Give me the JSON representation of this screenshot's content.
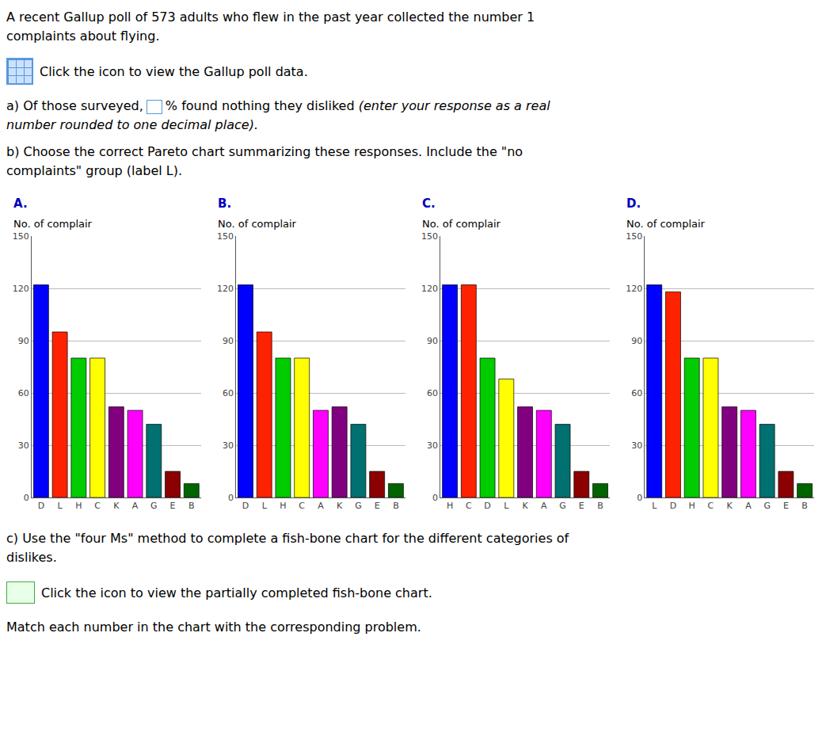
{
  "annotations": [
    "A recent Gallup poll of 573 adults who flew in the past year collected the number 1",
    "complaints about flying.",
    "Click the icon to view the Gallup poll data.",
    "a) Of those surveyed,",
    "% found nothing they disliked",
    "(enter your response as a real",
    "number rounded to one decimal place).",
    "b) Choose the correct Pareto chart summarizing these responses. Include the \"no",
    "complaints\" group (label L).",
    "c) Use the \"four Ms\" method to complete a fish-bone chart for the different categories of",
    "dislikes.",
    "Click the icon to view the partially completed fish-bone chart.",
    "Match each number in the chart with the corresponding problem."
  ],
  "chart_data": [
    {
      "type": "bar",
      "title": "A.",
      "y_label": "No. of complair",
      "categories": [
        "D",
        "L",
        "H",
        "C",
        "K",
        "A",
        "G",
        "E",
        "B"
      ],
      "values": [
        122,
        95,
        80,
        80,
        52,
        50,
        42,
        15,
        8
      ],
      "colors": [
        "#0000ff",
        "#ff2200",
        "#00cc00",
        "#ffff00",
        "#800080",
        "#ff00ff",
        "#007070",
        "#8b0000",
        "#006400"
      ],
      "ylim": [
        0,
        150
      ],
      "yticks": [
        0,
        30,
        60,
        90,
        120,
        150
      ],
      "grid": true
    },
    {
      "type": "bar",
      "title": "B.",
      "y_label": "No. of complair",
      "categories": [
        "D",
        "L",
        "H",
        "C",
        "A",
        "K",
        "G",
        "E",
        "B"
      ],
      "values": [
        122,
        95,
        80,
        80,
        50,
        52,
        42,
        15,
        8
      ],
      "colors": [
        "#0000ff",
        "#ff2200",
        "#00cc00",
        "#ffff00",
        "#ff00ff",
        "#800080",
        "#007070",
        "#8b0000",
        "#006400"
      ],
      "ylim": [
        0,
        150
      ],
      "yticks": [
        0,
        30,
        60,
        90,
        120,
        150
      ],
      "grid": true
    },
    {
      "type": "bar",
      "title": "C.",
      "y_label": "No. of complair",
      "categories": [
        "H",
        "C",
        "D",
        "L",
        "K",
        "A",
        "G",
        "E",
        "B"
      ],
      "values": [
        122,
        122,
        80,
        68,
        52,
        50,
        42,
        15,
        8
      ],
      "colors": [
        "#0000ff",
        "#ff2200",
        "#00cc00",
        "#ffff00",
        "#800080",
        "#ff00ff",
        "#007070",
        "#8b0000",
        "#006400"
      ],
      "ylim": [
        0,
        150
      ],
      "yticks": [
        0,
        30,
        60,
        90,
        120,
        150
      ],
      "grid": true
    },
    {
      "type": "bar",
      "title": "D.",
      "y_label": "No. of complair",
      "categories": [
        "L",
        "D",
        "H",
        "C",
        "K",
        "A",
        "G",
        "E",
        "B"
      ],
      "values": [
        122,
        118,
        80,
        80,
        52,
        50,
        42,
        15,
        8
      ],
      "colors": [
        "#0000ff",
        "#ff2200",
        "#00cc00",
        "#ffff00",
        "#800080",
        "#ff00ff",
        "#007070",
        "#8b0000",
        "#006400"
      ],
      "ylim": [
        0,
        150
      ],
      "yticks": [
        0,
        30,
        60,
        90,
        120,
        150
      ],
      "grid": true
    }
  ]
}
